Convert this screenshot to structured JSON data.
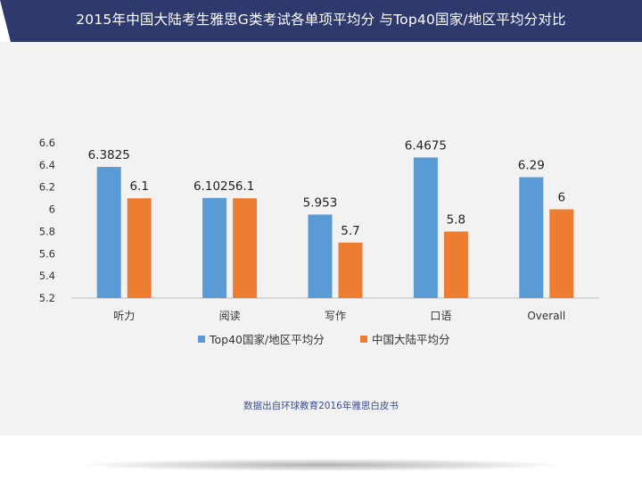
{
  "header": {
    "title": "2015年中国大陆考生雅思G类考试各单项平均分 与Top40国家/地区平均分对比",
    "background": "#2e3a6e"
  },
  "panel": {
    "background": "#f2f2f2"
  },
  "source_note": "数据出自环球教育2016年雅思白皮书",
  "chart_data": {
    "type": "bar",
    "categories": [
      "听力",
      "阅读",
      "写作",
      "口语",
      "Overall"
    ],
    "series": [
      {
        "name": "Top40国家/地区平均分",
        "values": [
          6.3825,
          6.1025,
          5.953,
          6.4675,
          6.29
        ],
        "labels": [
          "6.3825",
          "6.1025",
          "5.953",
          "6.4675",
          "6.29"
        ],
        "color": "#5b9bd5"
      },
      {
        "name": "中国大陆平均分",
        "values": [
          6.1,
          6.1,
          5.7,
          5.8,
          6.0
        ],
        "labels": [
          "6.1",
          "6.1",
          "5.7",
          "5.8",
          "6"
        ],
        "color": "#ed7d31"
      }
    ],
    "ylim": [
      5.2,
      6.6
    ],
    "yticks": [
      5.2,
      5.4,
      5.6,
      5.8,
      6,
      6.2,
      6.4,
      6.6
    ],
    "ytick_labels": [
      "5.2",
      "5.4",
      "5.6",
      "5.8",
      "6",
      "6.2",
      "6.4",
      "6.6"
    ],
    "legend_position": "bottom",
    "grid": false
  }
}
